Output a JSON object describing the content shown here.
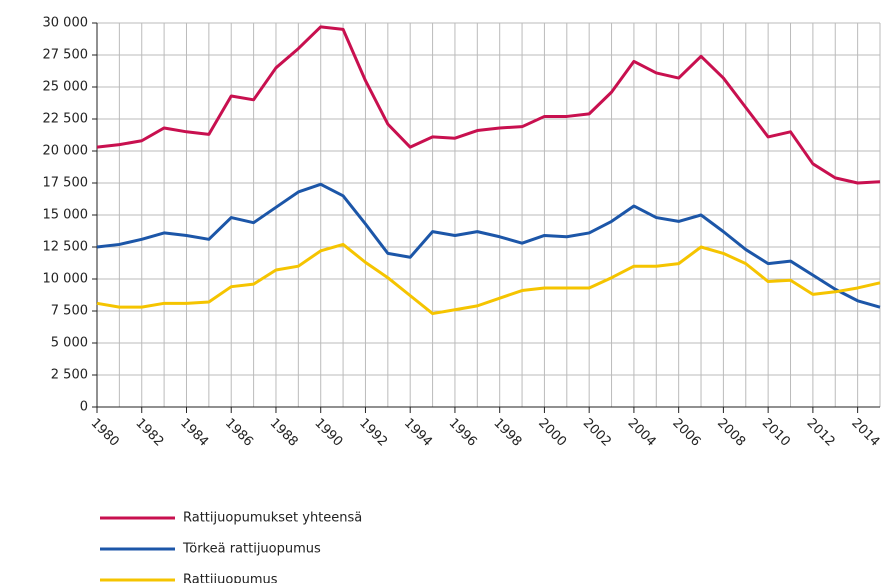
{
  "chart_data": {
    "type": "line",
    "x": [
      1980,
      1981,
      1982,
      1983,
      1984,
      1985,
      1986,
      1987,
      1988,
      1989,
      1990,
      1991,
      1992,
      1993,
      1994,
      1995,
      1996,
      1997,
      1998,
      1999,
      2000,
      2001,
      2002,
      2003,
      2004,
      2005,
      2006,
      2007,
      2008,
      2009,
      2010,
      2011,
      2012,
      2013,
      2014,
      2015
    ],
    "series": [
      {
        "name": "Rattijuopumukset yhteensä",
        "color": "#c8104f",
        "values": [
          20300,
          20500,
          20800,
          21800,
          21500,
          21300,
          24300,
          24000,
          26500,
          28000,
          29700,
          29500,
          25500,
          22100,
          20300,
          21100,
          21000,
          21600,
          21800,
          21900,
          22700,
          22700,
          22900,
          24600,
          27000,
          26100,
          25700,
          27400,
          25700,
          23400,
          21100,
          21500,
          19000,
          17900,
          17500,
          17600
        ]
      },
      {
        "name": "Törkeä rattijuopumus",
        "color": "#1c56a8",
        "values": [
          12500,
          12700,
          13100,
          13600,
          13400,
          13100,
          14800,
          14400,
          15600,
          16800,
          17400,
          16500,
          14300,
          12000,
          11700,
          13700,
          13400,
          13700,
          13300,
          12800,
          13400,
          13300,
          13600,
          14500,
          15700,
          14800,
          14500,
          15000,
          13700,
          12300,
          11200,
          11400,
          10300,
          9200,
          8300,
          7800
        ]
      },
      {
        "name": "Rattijuopumus",
        "color": "#f5c400",
        "values": [
          8100,
          7800,
          7800,
          8100,
          8100,
          8200,
          9400,
          9600,
          10700,
          11000,
          12200,
          12700,
          11300,
          10100,
          8700,
          7300,
          7600,
          7900,
          8500,
          9100,
          9300,
          9300,
          9300,
          10100,
          11000,
          11000,
          11200,
          12500,
          12000,
          11200,
          9800,
          9900,
          8800,
          9000,
          9300,
          9700
        ]
      }
    ],
    "xlim": [
      1980,
      2015
    ],
    "xticks": [
      1980,
      1982,
      1984,
      1986,
      1988,
      1990,
      1992,
      1994,
      1996,
      1998,
      2000,
      2002,
      2004,
      2006,
      2008,
      2010,
      2012,
      2014
    ],
    "ylim": [
      0,
      30000
    ],
    "yticks": [
      0,
      {
        "value": 2500,
        "label": "2 500"
      },
      {
        "value": 5000,
        "label": "5 000"
      },
      {
        "value": 7500,
        "label": "7 500"
      },
      {
        "value": 10000,
        "label": "10 000"
      },
      {
        "value": 12500,
        "label": "12 500"
      },
      {
        "value": 15000,
        "label": "15 000"
      },
      {
        "value": 17500,
        "label": "17 500"
      },
      {
        "value": 20000,
        "label": "20 000"
      },
      {
        "value": 22500,
        "label": "22 500"
      },
      {
        "value": 25000,
        "label": "25 000"
      },
      {
        "value": 27500,
        "label": "27 500"
      },
      {
        "value": 30000,
        "label": "30 000"
      }
    ],
    "grid": true,
    "legend": "bottom"
  }
}
